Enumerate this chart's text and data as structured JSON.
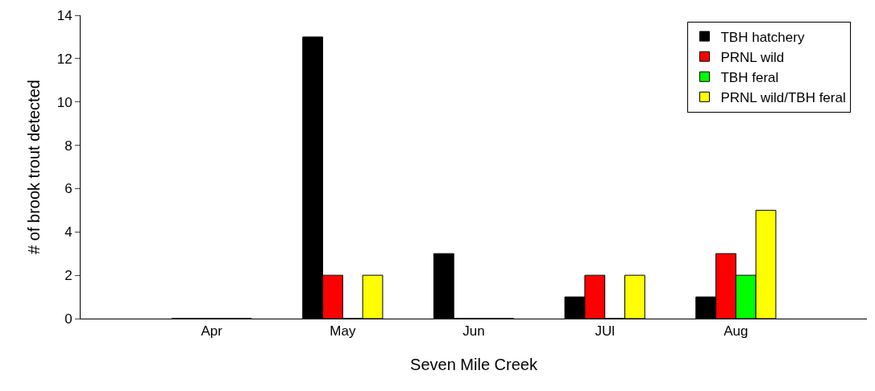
{
  "chart_data": {
    "type": "bar",
    "xlabel": "Seven Mile Creek",
    "ylabel": "# of brook trout detected",
    "categories": [
      "Apr",
      "May",
      "Jun",
      "JUl",
      "Aug"
    ],
    "series": [
      {
        "name": "TBH hatchery",
        "color": "#000000",
        "values": [
          0,
          13,
          3,
          1,
          1
        ]
      },
      {
        "name": "PRNL wild",
        "color": "#ff0000",
        "values": [
          0,
          2,
          0,
          2,
          3
        ]
      },
      {
        "name": "TBH feral",
        "color": "#00ff00",
        "values": [
          0,
          0,
          0,
          0,
          2
        ]
      },
      {
        "name": "PRNL wild/TBH feral",
        "color": "#ffff00",
        "values": [
          0,
          2,
          0,
          2,
          5
        ]
      }
    ],
    "ylim": [
      0,
      14
    ],
    "yticks": [
      0,
      2,
      4,
      6,
      8,
      10,
      12,
      14
    ],
    "legend": "top right"
  }
}
